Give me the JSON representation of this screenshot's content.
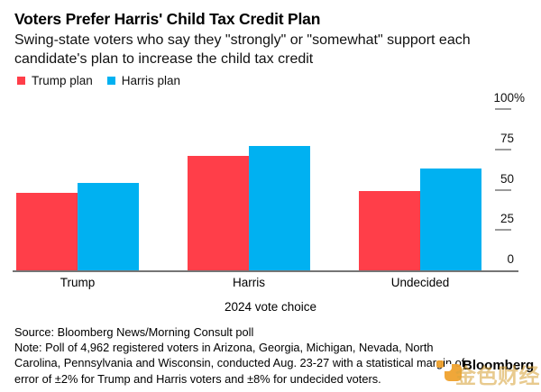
{
  "header": {
    "title": "Voters Prefer Harris' Child Tax Credit Plan",
    "subtitle": "Swing-state voters who say they \"strongly\" or \"somewhat\" support each candidate's plan to increase the child tax credit"
  },
  "chart_data": {
    "type": "bar",
    "title": "Voters Prefer Harris' Child Tax Credit Plan",
    "categories": [
      "Trump",
      "Harris",
      "Undecided"
    ],
    "series": [
      {
        "name": "Trump plan",
        "color": "#ff3e49",
        "values": [
          48,
          71,
          49
        ]
      },
      {
        "name": "Harris plan",
        "color": "#00b1f1",
        "values": [
          54,
          77,
          63
        ]
      }
    ],
    "xlabel": "2024 vote choice",
    "ylabel": "",
    "unit": "%",
    "ylim": [
      0,
      100
    ],
    "yticks": [
      {
        "value": 0,
        "label": "0",
        "suffix": ""
      },
      {
        "value": 25,
        "label": "25",
        "suffix": ""
      },
      {
        "value": 50,
        "label": "50",
        "suffix": ""
      },
      {
        "value": 75,
        "label": "75",
        "suffix": ""
      },
      {
        "value": 100,
        "label": "100",
        "suffix": "%"
      }
    ],
    "grid": "off",
    "legend_position": "top-left"
  },
  "footer": {
    "source": "Source: Bloomberg News/Morning Consult poll",
    "note": "Note: Poll of 4,962 registered voters in Arizona, Georgia, Michigan, Nevada, North Carolina, Pennsylvania and Wisconsin, conducted Aug. 23-27 with a statistical margin of error of ±2% for Trump and Harris voters and ±8% for undecided voters."
  },
  "branding": {
    "logo_text": "Bloomberg",
    "watermark_text": "金色财经",
    "watermark_color": "#d9a53e",
    "icon_color": "#f0a32f"
  },
  "colors": {
    "baseline": "#757575",
    "tick_dash": "#9b9b9b"
  }
}
